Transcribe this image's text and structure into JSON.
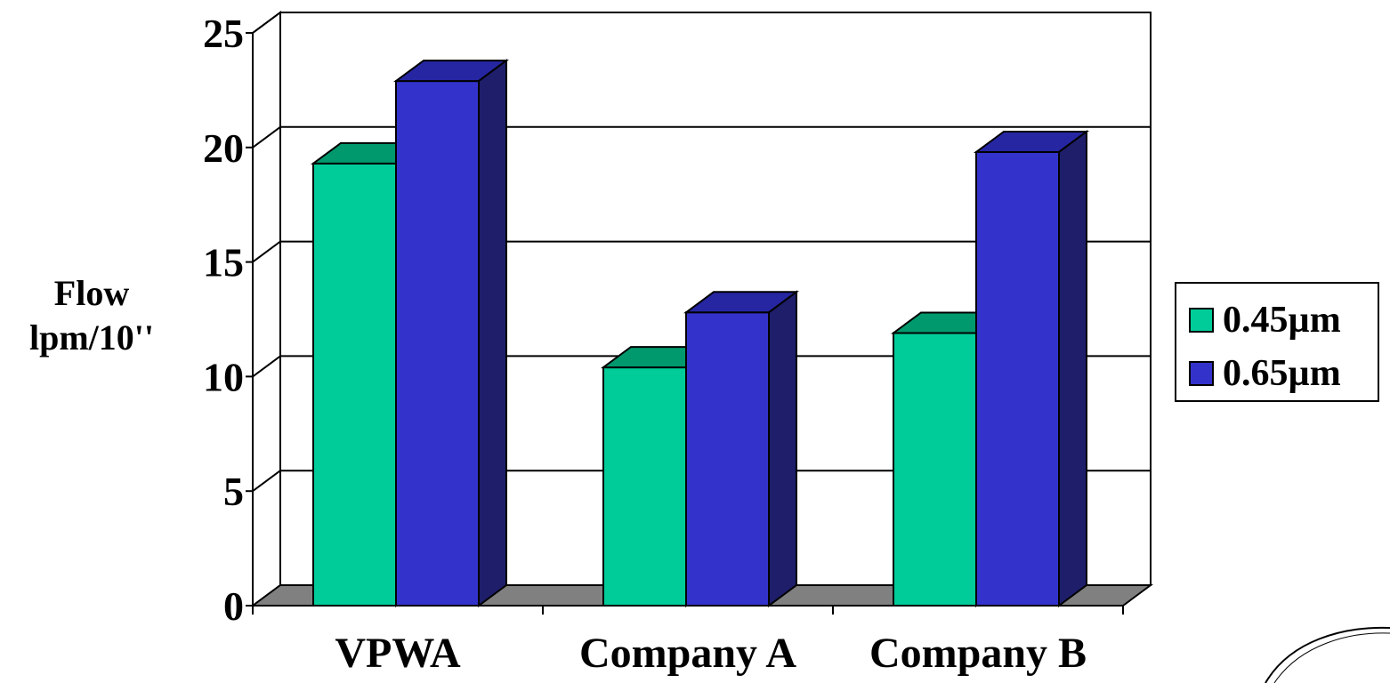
{
  "chart_data": {
    "type": "bar",
    "categories": [
      "VPWA",
      "Company A",
      "Company B"
    ],
    "series": [
      {
        "name": "0.45µm",
        "values": [
          19.3,
          10.4,
          11.9
        ]
      },
      {
        "name": "0.65µm",
        "values": [
          22.9,
          12.8,
          19.8
        ]
      }
    ],
    "title": "",
    "ylabel_lines": [
      "Flow",
      "lpm/10''"
    ],
    "ylim": [
      0,
      25
    ],
    "yticks": [
      0,
      5,
      10,
      15,
      20,
      25
    ],
    "grid": true,
    "legend_position": "right",
    "style": "3d-column"
  },
  "colors": {
    "series_front": [
      "#00cc99",
      "#3333cc"
    ],
    "series_top": [
      "#00996e",
      "#2626a3"
    ],
    "series_side": [
      "#008c66",
      "#1e1e6a"
    ],
    "floor": "#808080"
  }
}
